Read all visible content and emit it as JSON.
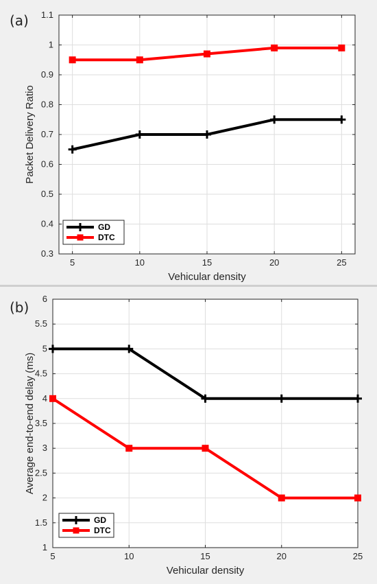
{
  "chart_data": [
    {
      "id": "a",
      "panel_label": "(a)",
      "type": "line",
      "x": [
        5,
        10,
        15,
        20,
        25
      ],
      "xlabel": "Vehicular density",
      "ylabel": "Packet Delivery Ratio",
      "xlim": [
        4,
        26
      ],
      "ylim": [
        0.3,
        1.1
      ],
      "xticks": [
        "5",
        "10",
        "15",
        "20",
        "25"
      ],
      "yticks": [
        "0.3",
        "0.4",
        "0.5",
        "0.6",
        "0.7",
        "0.8",
        "0.9",
        "1",
        "1.1"
      ],
      "grid": true,
      "legend_position": "bottom-left",
      "series": [
        {
          "name": "GD",
          "color": "#000000",
          "marker": "plus",
          "values": [
            0.65,
            0.7,
            0.7,
            0.75,
            0.75
          ]
        },
        {
          "name": "DTC",
          "color": "#ff0000",
          "marker": "square",
          "values": [
            0.95,
            0.95,
            0.97,
            0.99,
            0.99
          ]
        }
      ]
    },
    {
      "id": "b",
      "panel_label": "(b)",
      "type": "line",
      "x": [
        5,
        10,
        15,
        20,
        25
      ],
      "xlabel": "Vehicular density",
      "ylabel": "Average end-to-end delay (ms)",
      "xlim": [
        5,
        25
      ],
      "ylim": [
        1,
        6
      ],
      "xticks": [
        "5",
        "10",
        "15",
        "20",
        "25"
      ],
      "yticks": [
        "1",
        "1.5",
        "2",
        "2.5",
        "3",
        "3.5",
        "4",
        "4.5",
        "5",
        "5.5",
        "6"
      ],
      "grid": true,
      "legend_position": "bottom-left",
      "series": [
        {
          "name": "GD",
          "color": "#000000",
          "marker": "plus",
          "values": [
            5,
            5,
            4,
            4,
            4
          ]
        },
        {
          "name": "DTC",
          "color": "#ff0000",
          "marker": "square",
          "values": [
            4,
            3,
            3,
            2,
            2
          ]
        }
      ]
    }
  ]
}
